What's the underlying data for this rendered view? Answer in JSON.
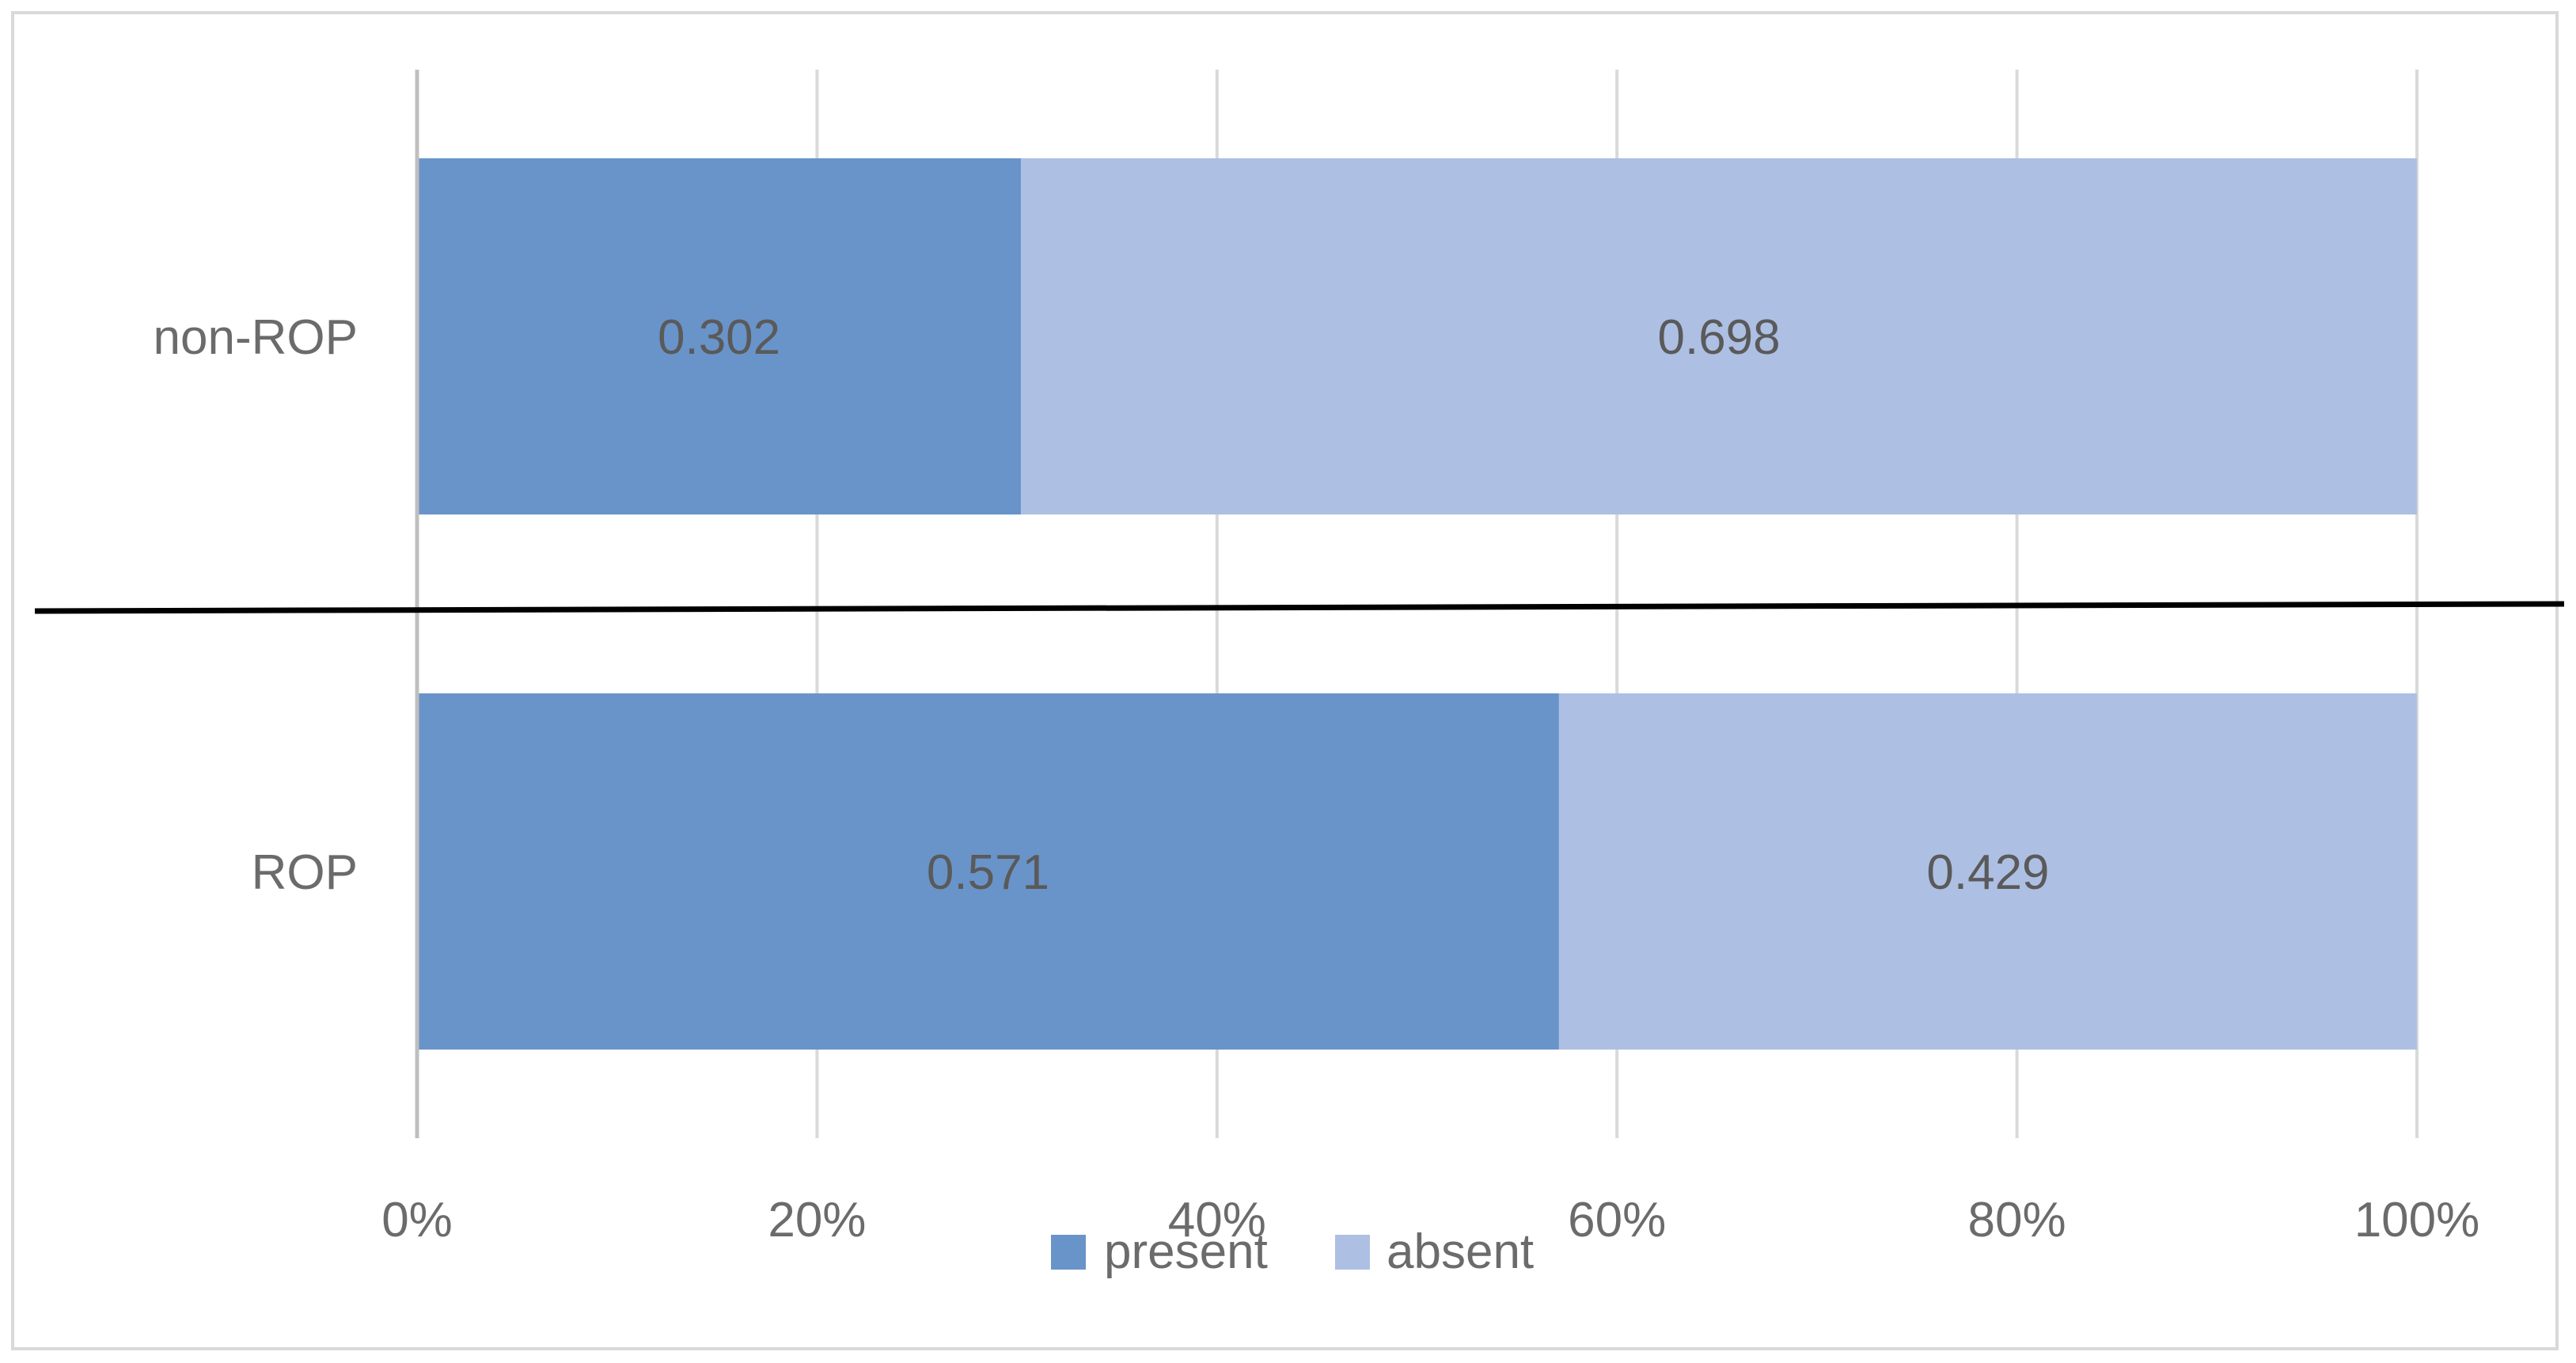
{
  "chart_data": {
    "type": "bar",
    "orientation": "horizontal",
    "stacked": "percent",
    "categories": [
      "non-ROP",
      "ROP"
    ],
    "series": [
      {
        "name": "present",
        "values": [
          0.302,
          0.571
        ],
        "labels": [
          "0.302",
          "0.571"
        ]
      },
      {
        "name": "absent",
        "values": [
          0.698,
          0.429
        ],
        "labels": [
          "0.698",
          "0.429"
        ]
      }
    ],
    "xlim": [
      0,
      100
    ],
    "xticks": [
      "0%",
      "20%",
      "40%",
      "60%",
      "80%",
      "100%"
    ],
    "grid": true,
    "legend": "bottom",
    "colors": {
      "present": "#6994c9",
      "absent": "#adbfe3",
      "grid": "#d9d9d9",
      "divider": "#000000"
    }
  }
}
